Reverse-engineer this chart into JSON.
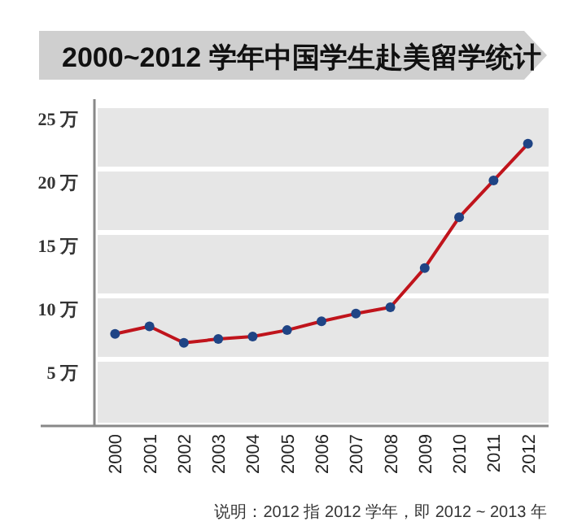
{
  "chart_data": {
    "type": "line",
    "title": "2000~2012 学年中国学生赴美留学统计",
    "categories": [
      "2000",
      "2001",
      "2002",
      "2003",
      "2004",
      "2005",
      "2006",
      "2007",
      "2008",
      "2009",
      "2010",
      "2011",
      "2012"
    ],
    "series": [
      {
        "color": "#c0141c",
        "values": [
          7.0,
          7.6,
          6.3,
          6.6,
          6.8,
          7.3,
          8.0,
          8.6,
          9.1,
          12.2,
          16.2,
          19.1,
          22.0
        ]
      }
    ],
    "marker": "circle",
    "line_style": "solid",
    "ylim": [
      0,
      25
    ],
    "yticks": [
      {
        "value": 5,
        "label": "5 万"
      },
      {
        "value": 10,
        "label": "10 万"
      },
      {
        "value": 15,
        "label": "15 万"
      },
      {
        "value": 20,
        "label": "20 万"
      },
      {
        "value": 25,
        "label": "25 万"
      }
    ],
    "grid": "y",
    "annotations": [
      "说明：2012 指 2012 学年，即 2012 ~ 2013 年"
    ]
  }
}
